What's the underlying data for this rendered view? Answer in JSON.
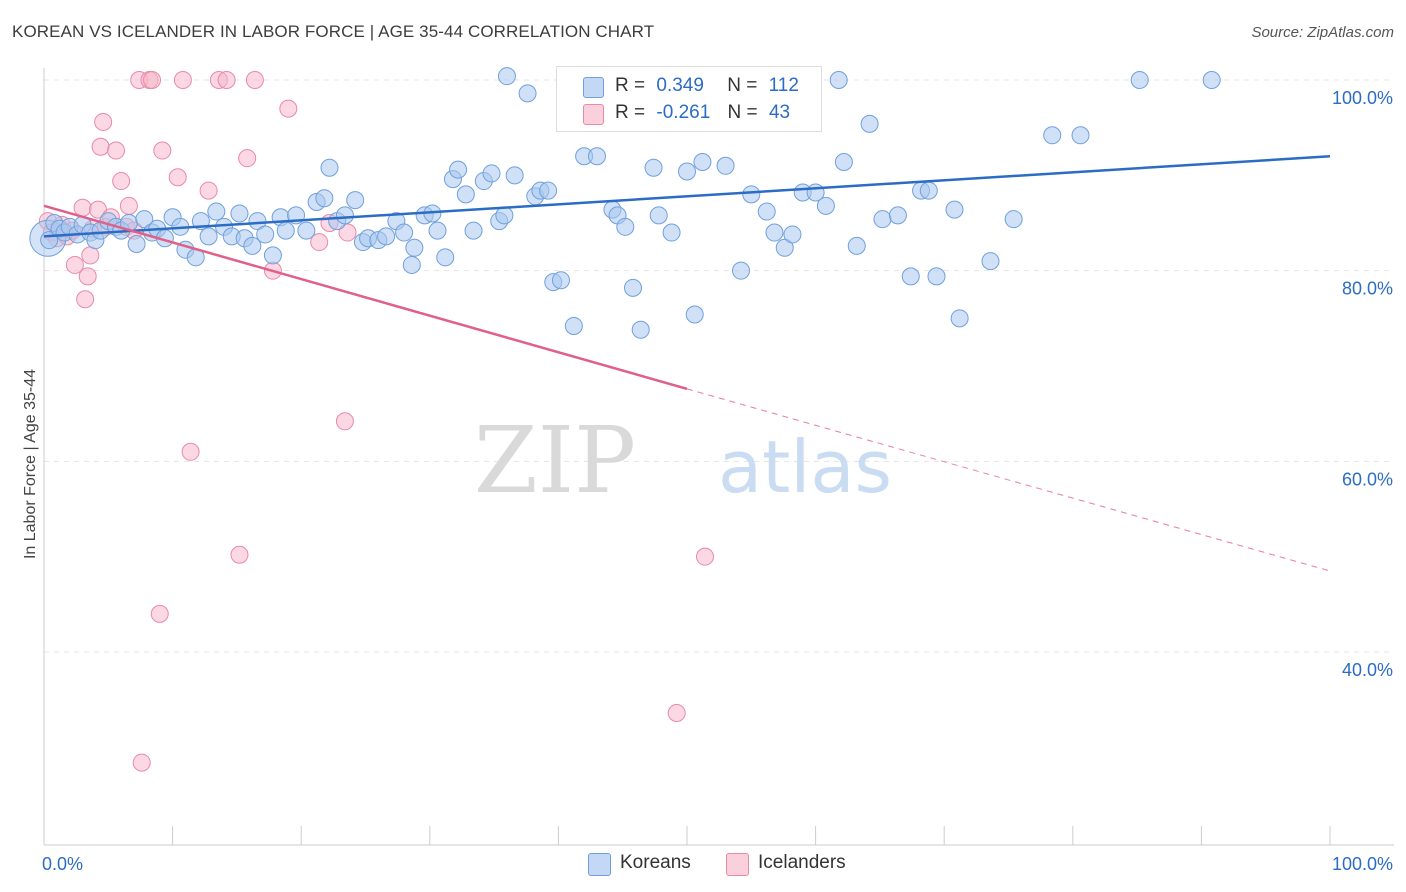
{
  "header": {
    "title": "KOREAN VS ICELANDER IN LABOR FORCE | AGE 35-44 CORRELATION CHART",
    "source": "Source: ZipAtlas.com"
  },
  "watermark": {
    "zip": "ZIP",
    "atlas": "atlas"
  },
  "legend": {
    "rows": [
      {
        "r_label": "R =",
        "r_value": "0.349",
        "n_label": "N =",
        "n_value": "112",
        "color": "#a9c8f0"
      },
      {
        "r_label": "R =",
        "r_value": "-0.261",
        "n_label": "N =",
        "n_value": "43",
        "color": "#f7b8cc"
      }
    ]
  },
  "bottom_legend": {
    "koreans": "Koreans",
    "icelanders": "Icelanders"
  },
  "chart_data": {
    "type": "scatter",
    "title": "KOREAN VS ICELANDER IN LABOR FORCE | AGE 35-44 CORRELATION CHART",
    "xlabel": "",
    "ylabel": "In Labor Force | Age 35-44",
    "xlim": [
      0,
      100
    ],
    "ylim": [
      20,
      102
    ],
    "x_tick_labels": [
      "0.0%",
      "100.0%"
    ],
    "y_ticks": [
      40,
      60,
      80,
      100
    ],
    "y_tick_labels": [
      "40.0%",
      "60.0%",
      "80.0%",
      "100.0%"
    ],
    "grid": true,
    "legend_position": "top-center",
    "colors": {
      "koreans_fill": "#a9c8f0",
      "koreans_stroke": "#6fa0dc",
      "koreans_line": "#2b6cc4",
      "icelanders_fill": "#f7b8cc",
      "icelanders_stroke": "#e88aa8",
      "icelanders_line": "#e0608a",
      "axis_text": "#2b6cc4"
    },
    "series": [
      {
        "name": "Koreans",
        "r": 0.349,
        "n": 112,
        "trend": {
          "x0": 0,
          "y0": 83.6,
          "x1": 100,
          "y1": 92.0
        },
        "points": [
          [
            0.4,
            83.2
          ],
          [
            0.8,
            85.0
          ],
          [
            1.2,
            84.4
          ],
          [
            1.6,
            84.0
          ],
          [
            2.0,
            84.6
          ],
          [
            2.6,
            83.8
          ],
          [
            3.0,
            84.8
          ],
          [
            3.6,
            84.0
          ],
          [
            4.0,
            83.2
          ],
          [
            4.4,
            84.2
          ],
          [
            5.0,
            85.2
          ],
          [
            5.6,
            84.6
          ],
          [
            6.0,
            84.2
          ],
          [
            6.6,
            85.0
          ],
          [
            7.2,
            82.8
          ],
          [
            7.8,
            85.4
          ],
          [
            8.4,
            84.0
          ],
          [
            8.8,
            84.4
          ],
          [
            9.4,
            83.4
          ],
          [
            10.0,
            85.6
          ],
          [
            10.6,
            84.6
          ],
          [
            11.0,
            82.2
          ],
          [
            11.8,
            81.4
          ],
          [
            12.2,
            85.2
          ],
          [
            12.8,
            83.6
          ],
          [
            13.4,
            86.2
          ],
          [
            14.0,
            84.6
          ],
          [
            14.6,
            83.6
          ],
          [
            15.2,
            86.0
          ],
          [
            15.6,
            83.4
          ],
          [
            16.2,
            82.6
          ],
          [
            16.6,
            85.2
          ],
          [
            17.2,
            83.8
          ],
          [
            17.8,
            81.6
          ],
          [
            18.4,
            85.6
          ],
          [
            18.8,
            84.2
          ],
          [
            19.6,
            85.8
          ],
          [
            20.4,
            84.2
          ],
          [
            21.2,
            87.2
          ],
          [
            21.8,
            87.6
          ],
          [
            22.2,
            90.8
          ],
          [
            22.8,
            85.2
          ],
          [
            23.4,
            85.8
          ],
          [
            24.2,
            87.4
          ],
          [
            24.8,
            83.0
          ],
          [
            25.2,
            83.4
          ],
          [
            26.0,
            83.2
          ],
          [
            26.6,
            83.6
          ],
          [
            27.4,
            85.2
          ],
          [
            28.0,
            84.0
          ],
          [
            28.6,
            80.6
          ],
          [
            28.8,
            82.4
          ],
          [
            29.6,
            85.8
          ],
          [
            30.2,
            86.0
          ],
          [
            30.6,
            84.2
          ],
          [
            31.2,
            81.4
          ],
          [
            31.8,
            89.6
          ],
          [
            32.2,
            90.6
          ],
          [
            32.8,
            88.0
          ],
          [
            33.4,
            84.2
          ],
          [
            34.2,
            89.4
          ],
          [
            34.8,
            90.2
          ],
          [
            35.4,
            85.2
          ],
          [
            35.8,
            85.8
          ],
          [
            36.6,
            90.0
          ],
          [
            37.6,
            98.6
          ],
          [
            38.2,
            87.8
          ],
          [
            38.6,
            88.4
          ],
          [
            39.2,
            88.4
          ],
          [
            39.6,
            78.8
          ],
          [
            40.2,
            79.0
          ],
          [
            40.8,
            100.0
          ],
          [
            41.2,
            74.2
          ],
          [
            42.0,
            92.0
          ],
          [
            43.0,
            92.0
          ],
          [
            44.2,
            86.4
          ],
          [
            44.6,
            85.8
          ],
          [
            45.2,
            84.6
          ],
          [
            45.8,
            78.2
          ],
          [
            46.4,
            73.8
          ],
          [
            47.4,
            90.8
          ],
          [
            47.8,
            85.8
          ],
          [
            48.8,
            84.0
          ],
          [
            50.0,
            90.4
          ],
          [
            50.6,
            75.4
          ],
          [
            51.2,
            91.4
          ],
          [
            53.0,
            91.0
          ],
          [
            54.2,
            80.0
          ],
          [
            55.0,
            88.0
          ],
          [
            56.2,
            86.2
          ],
          [
            56.8,
            84.0
          ],
          [
            57.6,
            82.4
          ],
          [
            58.2,
            83.8
          ],
          [
            59.0,
            88.2
          ],
          [
            60.0,
            88.2
          ],
          [
            60.8,
            86.8
          ],
          [
            61.8,
            100.0
          ],
          [
            62.2,
            91.4
          ],
          [
            63.2,
            82.6
          ],
          [
            64.2,
            95.4
          ],
          [
            65.2,
            85.4
          ],
          [
            66.4,
            85.8
          ],
          [
            67.4,
            79.4
          ],
          [
            68.2,
            88.4
          ],
          [
            68.8,
            88.4
          ],
          [
            69.4,
            79.4
          ],
          [
            70.8,
            86.4
          ],
          [
            71.2,
            75.0
          ],
          [
            73.6,
            81.0
          ],
          [
            75.4,
            85.4
          ],
          [
            78.4,
            94.2
          ],
          [
            80.6,
            94.2
          ],
          [
            85.2,
            100.0
          ],
          [
            90.8,
            100.0
          ],
          [
            52.0,
            99.4
          ],
          [
            36.0,
            100.4
          ]
        ]
      },
      {
        "name": "Icelanders",
        "r": -0.261,
        "n": 43,
        "trend": {
          "x0": 0,
          "y0": 86.8,
          "x1": 50,
          "y1": 67.6,
          "dashed_to": {
            "x1": 100,
            "y1": 48.5
          }
        },
        "points": [
          [
            0.3,
            85.2
          ],
          [
            0.6,
            84.0
          ],
          [
            1.0,
            83.4
          ],
          [
            1.4,
            84.8
          ],
          [
            1.8,
            83.6
          ],
          [
            2.2,
            84.2
          ],
          [
            2.4,
            80.6
          ],
          [
            3.0,
            86.6
          ],
          [
            3.2,
            77.0
          ],
          [
            3.4,
            79.4
          ],
          [
            3.6,
            81.6
          ],
          [
            3.8,
            84.4
          ],
          [
            4.2,
            86.4
          ],
          [
            4.4,
            93.0
          ],
          [
            4.6,
            95.6
          ],
          [
            4.8,
            84.6
          ],
          [
            5.2,
            85.6
          ],
          [
            5.6,
            92.6
          ],
          [
            6.0,
            89.4
          ],
          [
            6.4,
            84.6
          ],
          [
            6.6,
            86.8
          ],
          [
            7.0,
            84.2
          ],
          [
            7.4,
            100.0
          ],
          [
            8.2,
            100.0
          ],
          [
            8.4,
            100.0
          ],
          [
            9.2,
            92.6
          ],
          [
            10.4,
            89.8
          ],
          [
            10.8,
            100.0
          ],
          [
            12.8,
            88.4
          ],
          [
            13.6,
            100.0
          ],
          [
            14.2,
            100.0
          ],
          [
            15.8,
            91.8
          ],
          [
            16.4,
            100.0
          ],
          [
            17.8,
            80.0
          ],
          [
            19.0,
            97.0
          ],
          [
            21.4,
            83.0
          ],
          [
            22.2,
            85.0
          ],
          [
            23.6,
            84.0
          ],
          [
            11.4,
            61.0
          ],
          [
            15.2,
            50.2
          ],
          [
            9.0,
            44.0
          ],
          [
            7.6,
            28.4
          ],
          [
            23.4,
            64.2
          ],
          [
            51.4,
            50.0
          ],
          [
            49.2,
            33.6
          ]
        ]
      }
    ]
  }
}
